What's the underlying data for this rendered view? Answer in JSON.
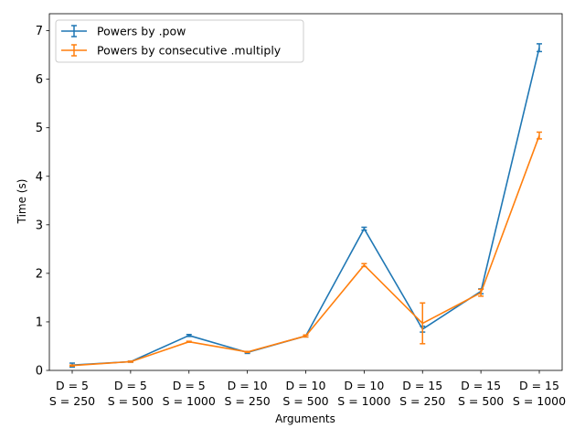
{
  "chart_data": {
    "type": "line",
    "title": "",
    "xlabel": "Arguments",
    "ylabel": "Time (s)",
    "categories": [
      [
        "D = 5",
        "S = 250"
      ],
      [
        "D = 5",
        "S = 500"
      ],
      [
        "D = 5",
        "S = 1000"
      ],
      [
        "D = 10",
        "S = 250"
      ],
      [
        "D = 10",
        "S = 500"
      ],
      [
        "D = 10",
        "S = 1000"
      ],
      [
        "D = 15",
        "S = 250"
      ],
      [
        "D = 15",
        "S = 500"
      ],
      [
        "D = 15",
        "S = 1000"
      ]
    ],
    "ylim": [
      0,
      7.35
    ],
    "yticks": [
      0,
      1,
      2,
      3,
      4,
      5,
      6,
      7
    ],
    "grid": false,
    "legend_position": "upper-left",
    "error_bars": true,
    "series": [
      {
        "name": "Powers by .pow",
        "color": "#1f77b4",
        "values": [
          0.11,
          0.18,
          0.72,
          0.37,
          0.71,
          2.92,
          0.85,
          1.63,
          6.65
        ],
        "errors": [
          0.04,
          0.01,
          0.02,
          0.02,
          0.02,
          0.03,
          0.06,
          0.05,
          0.08
        ]
      },
      {
        "name": "Powers by consecutive .multiply",
        "color": "#ff7f0e",
        "values": [
          0.1,
          0.18,
          0.59,
          0.38,
          0.71,
          2.17,
          0.97,
          1.6,
          4.84
        ],
        "errors": [
          0.01,
          0.01,
          0.01,
          0.01,
          0.02,
          0.03,
          0.42,
          0.07,
          0.07
        ]
      }
    ]
  }
}
